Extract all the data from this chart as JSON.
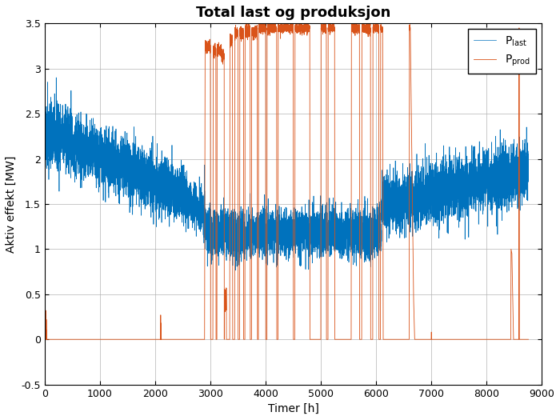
{
  "title": "Total last og produksjon",
  "xlabel": "Timer [h]",
  "ylabel": "Aktiv effekt [MW]",
  "xlim": [
    0,
    9000
  ],
  "ylim": [
    -0.5,
    3.5
  ],
  "xticks": [
    0,
    1000,
    2000,
    3000,
    4000,
    5000,
    6000,
    7000,
    8000,
    9000
  ],
  "yticks": [
    -0.5,
    0.0,
    0.5,
    1.0,
    1.5,
    2.0,
    2.5,
    3.0,
    3.5
  ],
  "color_last": "#0072BD",
  "color_prod": "#D95319",
  "background_color": "#ffffff",
  "grid_color": "#b0b0b0",
  "title_fontsize": 13,
  "label_fontsize": 10,
  "tick_fontsize": 9,
  "legend_fontsize": 10,
  "seed": 42
}
